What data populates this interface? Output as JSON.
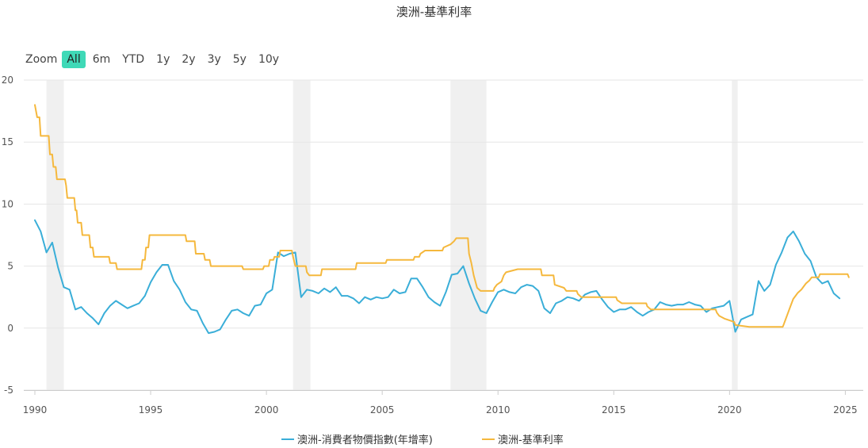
{
  "title": "澳洲-基準利率",
  "zoom": {
    "label": "Zoom",
    "buttons": [
      "All",
      "6m",
      "YTD",
      "1y",
      "2y",
      "3y",
      "5y",
      "10y"
    ],
    "active": "All"
  },
  "colors": {
    "cpi": "#3aaed8",
    "rate": "#f5b83d",
    "recession": "#f0f0f0",
    "zoom_active": "#3fd9b7",
    "grid": "#e6e6e6"
  },
  "chart_data": {
    "type": "line",
    "title": "澳洲-基準利率",
    "xlabel": "",
    "ylabel": "",
    "xlim": [
      1990,
      2025.5
    ],
    "ylim": [
      -5,
      20
    ],
    "y_ticks": [
      "-5",
      "0",
      "5",
      "10",
      "15",
      "20"
    ],
    "x_ticks": [
      "1990",
      "1995",
      "2000",
      "2005",
      "2010",
      "2015",
      "2020",
      "2025"
    ],
    "grid": true,
    "legend_position": "bottom-center",
    "recession_bands": [
      [
        1990.5,
        1991.25
      ],
      [
        2001.15,
        2001.9
      ],
      [
        2007.95,
        2009.5
      ],
      [
        2020.1,
        2020.35
      ]
    ],
    "series": [
      {
        "name": "澳洲-消費者物價指數(年增率)",
        "color": "#3aaed8",
        "points": [
          [
            1990.0,
            8.7
          ],
          [
            1990.25,
            7.8
          ],
          [
            1990.5,
            6.1
          ],
          [
            1990.75,
            6.9
          ],
          [
            1991.0,
            4.9
          ],
          [
            1991.25,
            3.3
          ],
          [
            1991.5,
            3.1
          ],
          [
            1991.75,
            1.5
          ],
          [
            1992.0,
            1.7
          ],
          [
            1992.25,
            1.2
          ],
          [
            1992.5,
            0.8
          ],
          [
            1992.75,
            0.3
          ],
          [
            1993.0,
            1.2
          ],
          [
            1993.25,
            1.8
          ],
          [
            1993.5,
            2.2
          ],
          [
            1993.75,
            1.9
          ],
          [
            1994.0,
            1.6
          ],
          [
            1994.25,
            1.8
          ],
          [
            1994.5,
            2.0
          ],
          [
            1994.75,
            2.6
          ],
          [
            1995.0,
            3.7
          ],
          [
            1995.25,
            4.5
          ],
          [
            1995.5,
            5.1
          ],
          [
            1995.75,
            5.1
          ],
          [
            1996.0,
            3.8
          ],
          [
            1996.25,
            3.1
          ],
          [
            1996.5,
            2.1
          ],
          [
            1996.75,
            1.5
          ],
          [
            1997.0,
            1.4
          ],
          [
            1997.25,
            0.4
          ],
          [
            1997.5,
            -0.4
          ],
          [
            1997.75,
            -0.3
          ],
          [
            1998.0,
            -0.1
          ],
          [
            1998.25,
            0.7
          ],
          [
            1998.5,
            1.4
          ],
          [
            1998.75,
            1.5
          ],
          [
            1999.0,
            1.2
          ],
          [
            1999.25,
            1.0
          ],
          [
            1999.5,
            1.8
          ],
          [
            1999.75,
            1.9
          ],
          [
            2000.0,
            2.8
          ],
          [
            2000.25,
            3.1
          ],
          [
            2000.5,
            6.1
          ],
          [
            2000.75,
            5.8
          ],
          [
            2001.0,
            6.0
          ],
          [
            2001.25,
            6.1
          ],
          [
            2001.5,
            2.5
          ],
          [
            2001.75,
            3.1
          ],
          [
            2002.0,
            3.0
          ],
          [
            2002.25,
            2.8
          ],
          [
            2002.5,
            3.2
          ],
          [
            2002.75,
            2.9
          ],
          [
            2003.0,
            3.3
          ],
          [
            2003.25,
            2.6
          ],
          [
            2003.5,
            2.6
          ],
          [
            2003.75,
            2.4
          ],
          [
            2004.0,
            2.0
          ],
          [
            2004.25,
            2.5
          ],
          [
            2004.5,
            2.3
          ],
          [
            2004.75,
            2.5
          ],
          [
            2005.0,
            2.4
          ],
          [
            2005.25,
            2.5
          ],
          [
            2005.5,
            3.1
          ],
          [
            2005.75,
            2.8
          ],
          [
            2006.0,
            2.9
          ],
          [
            2006.25,
            4.0
          ],
          [
            2006.5,
            4.0
          ],
          [
            2006.75,
            3.3
          ],
          [
            2007.0,
            2.5
          ],
          [
            2007.25,
            2.1
          ],
          [
            2007.5,
            1.8
          ],
          [
            2007.75,
            2.9
          ],
          [
            2008.0,
            4.3
          ],
          [
            2008.25,
            4.4
          ],
          [
            2008.5,
            5.0
          ],
          [
            2008.75,
            3.6
          ],
          [
            2009.0,
            2.4
          ],
          [
            2009.25,
            1.4
          ],
          [
            2009.5,
            1.2
          ],
          [
            2009.75,
            2.1
          ],
          [
            2010.0,
            2.9
          ],
          [
            2010.25,
            3.1
          ],
          [
            2010.5,
            2.9
          ],
          [
            2010.75,
            2.8
          ],
          [
            2011.0,
            3.3
          ],
          [
            2011.25,
            3.5
          ],
          [
            2011.5,
            3.4
          ],
          [
            2011.75,
            3.0
          ],
          [
            2012.0,
            1.6
          ],
          [
            2012.25,
            1.2
          ],
          [
            2012.5,
            2.0
          ],
          [
            2012.75,
            2.2
          ],
          [
            2013.0,
            2.5
          ],
          [
            2013.25,
            2.4
          ],
          [
            2013.5,
            2.2
          ],
          [
            2013.75,
            2.7
          ],
          [
            2014.0,
            2.9
          ],
          [
            2014.25,
            3.0
          ],
          [
            2014.5,
            2.3
          ],
          [
            2014.75,
            1.7
          ],
          [
            2015.0,
            1.3
          ],
          [
            2015.25,
            1.5
          ],
          [
            2015.5,
            1.5
          ],
          [
            2015.75,
            1.7
          ],
          [
            2016.0,
            1.3
          ],
          [
            2016.25,
            1.0
          ],
          [
            2016.5,
            1.3
          ],
          [
            2016.75,
            1.5
          ],
          [
            2017.0,
            2.1
          ],
          [
            2017.25,
            1.9
          ],
          [
            2017.5,
            1.8
          ],
          [
            2017.75,
            1.9
          ],
          [
            2018.0,
            1.9
          ],
          [
            2018.25,
            2.1
          ],
          [
            2018.5,
            1.9
          ],
          [
            2018.75,
            1.8
          ],
          [
            2019.0,
            1.3
          ],
          [
            2019.25,
            1.6
          ],
          [
            2019.5,
            1.7
          ],
          [
            2019.75,
            1.8
          ],
          [
            2020.0,
            2.2
          ],
          [
            2020.25,
            -0.3
          ],
          [
            2020.5,
            0.7
          ],
          [
            2020.75,
            0.9
          ],
          [
            2021.0,
            1.1
          ],
          [
            2021.25,
            3.8
          ],
          [
            2021.5,
            3.0
          ],
          [
            2021.75,
            3.5
          ],
          [
            2022.0,
            5.1
          ],
          [
            2022.25,
            6.1
          ],
          [
            2022.5,
            7.3
          ],
          [
            2022.75,
            7.8
          ],
          [
            2023.0,
            7.0
          ],
          [
            2023.25,
            6.0
          ],
          [
            2023.5,
            5.4
          ],
          [
            2023.75,
            4.1
          ],
          [
            2024.0,
            3.6
          ],
          [
            2024.25,
            3.8
          ],
          [
            2024.5,
            2.8
          ],
          [
            2024.75,
            2.4
          ]
        ]
      },
      {
        "name": "澳洲-基準利率",
        "color": "#f5b83d",
        "points": [
          [
            1990.0,
            18.0
          ],
          [
            1990.1,
            17.0
          ],
          [
            1990.2,
            17.0
          ],
          [
            1990.25,
            15.5
          ],
          [
            1990.6,
            15.5
          ],
          [
            1990.65,
            14.0
          ],
          [
            1990.75,
            14.0
          ],
          [
            1990.8,
            13.0
          ],
          [
            1990.9,
            13.0
          ],
          [
            1990.95,
            12.0
          ],
          [
            1991.3,
            12.0
          ],
          [
            1991.35,
            11.5
          ],
          [
            1991.4,
            10.5
          ],
          [
            1991.7,
            10.5
          ],
          [
            1991.75,
            9.5
          ],
          [
            1991.8,
            9.5
          ],
          [
            1991.85,
            8.5
          ],
          [
            1992.0,
            8.5
          ],
          [
            1992.05,
            7.5
          ],
          [
            1992.35,
            7.5
          ],
          [
            1992.4,
            6.5
          ],
          [
            1992.5,
            6.5
          ],
          [
            1992.55,
            5.75
          ],
          [
            1993.2,
            5.75
          ],
          [
            1993.25,
            5.25
          ],
          [
            1993.5,
            5.25
          ],
          [
            1993.55,
            4.75
          ],
          [
            1994.6,
            4.75
          ],
          [
            1994.65,
            5.5
          ],
          [
            1994.75,
            5.5
          ],
          [
            1994.8,
            6.5
          ],
          [
            1994.9,
            6.5
          ],
          [
            1994.95,
            7.5
          ],
          [
            1996.5,
            7.5
          ],
          [
            1996.55,
            7.0
          ],
          [
            1996.9,
            7.0
          ],
          [
            1996.95,
            6.0
          ],
          [
            1997.3,
            6.0
          ],
          [
            1997.35,
            5.5
          ],
          [
            1997.55,
            5.5
          ],
          [
            1997.6,
            5.0
          ],
          [
            1998.95,
            5.0
          ],
          [
            1999.0,
            4.75
          ],
          [
            1999.85,
            4.75
          ],
          [
            1999.9,
            5.0
          ],
          [
            2000.1,
            5.0
          ],
          [
            2000.15,
            5.5
          ],
          [
            2000.3,
            5.5
          ],
          [
            2000.35,
            5.75
          ],
          [
            2000.55,
            5.75
          ],
          [
            2000.6,
            6.25
          ],
          [
            2001.1,
            6.25
          ],
          [
            2001.15,
            5.75
          ],
          [
            2001.25,
            5.0
          ],
          [
            2001.7,
            5.0
          ],
          [
            2001.75,
            4.5
          ],
          [
            2001.85,
            4.25
          ],
          [
            2002.35,
            4.25
          ],
          [
            2002.4,
            4.75
          ],
          [
            2003.85,
            4.75
          ],
          [
            2003.9,
            5.25
          ],
          [
            2005.15,
            5.25
          ],
          [
            2005.2,
            5.5
          ],
          [
            2006.35,
            5.5
          ],
          [
            2006.4,
            5.75
          ],
          [
            2006.6,
            5.75
          ],
          [
            2006.65,
            6.0
          ],
          [
            2006.85,
            6.25
          ],
          [
            2007.6,
            6.25
          ],
          [
            2007.65,
            6.5
          ],
          [
            2007.95,
            6.75
          ],
          [
            2008.1,
            7.0
          ],
          [
            2008.2,
            7.25
          ],
          [
            2008.7,
            7.25
          ],
          [
            2008.75,
            6.0
          ],
          [
            2008.85,
            5.25
          ],
          [
            2008.95,
            4.25
          ],
          [
            2009.1,
            3.25
          ],
          [
            2009.25,
            3.0
          ],
          [
            2009.8,
            3.0
          ],
          [
            2009.85,
            3.25
          ],
          [
            2009.95,
            3.5
          ],
          [
            2010.15,
            3.75
          ],
          [
            2010.25,
            4.25
          ],
          [
            2010.35,
            4.5
          ],
          [
            2010.85,
            4.75
          ],
          [
            2011.85,
            4.75
          ],
          [
            2011.9,
            4.25
          ],
          [
            2012.4,
            4.25
          ],
          [
            2012.45,
            3.5
          ],
          [
            2012.85,
            3.25
          ],
          [
            2012.95,
            3.0
          ],
          [
            2013.4,
            3.0
          ],
          [
            2013.45,
            2.75
          ],
          [
            2013.6,
            2.5
          ],
          [
            2015.1,
            2.5
          ],
          [
            2015.15,
            2.25
          ],
          [
            2015.35,
            2.0
          ],
          [
            2016.4,
            2.0
          ],
          [
            2016.45,
            1.75
          ],
          [
            2016.6,
            1.5
          ],
          [
            2019.4,
            1.5
          ],
          [
            2019.45,
            1.25
          ],
          [
            2019.55,
            1.0
          ],
          [
            2019.8,
            0.75
          ],
          [
            2020.2,
            0.5
          ],
          [
            2020.25,
            0.25
          ],
          [
            2020.85,
            0.1
          ],
          [
            2022.3,
            0.1
          ],
          [
            2022.35,
            0.35
          ],
          [
            2022.45,
            0.85
          ],
          [
            2022.55,
            1.35
          ],
          [
            2022.65,
            1.85
          ],
          [
            2022.75,
            2.35
          ],
          [
            2022.85,
            2.6
          ],
          [
            2022.95,
            2.85
          ],
          [
            2023.1,
            3.1
          ],
          [
            2023.2,
            3.35
          ],
          [
            2023.3,
            3.6
          ],
          [
            2023.45,
            3.85
          ],
          [
            2023.55,
            4.1
          ],
          [
            2023.85,
            4.1
          ],
          [
            2023.9,
            4.35
          ],
          [
            2025.1,
            4.35
          ],
          [
            2025.15,
            4.1
          ]
        ]
      }
    ]
  }
}
